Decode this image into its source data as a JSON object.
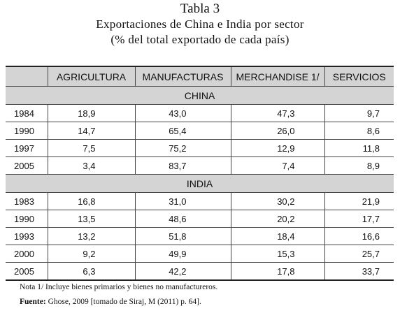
{
  "header": {
    "title": "Tabla 3",
    "subtitle": "Exportaciones de China e India por sector",
    "subtitle2": "(% del total exportado de cada país)"
  },
  "table": {
    "columns": [
      "AGRICULTURA",
      "MANUFACTURAS",
      "MERCHANDISE 1/",
      "SERVICIOS"
    ],
    "sections": [
      {
        "label": "CHINA",
        "rows": [
          [
            "1984",
            "18,9",
            "43,0",
            "47,3",
            "9,7"
          ],
          [
            "1990",
            "14,7",
            "65,4",
            "26,0",
            "8,6"
          ],
          [
            "1997",
            "7,5",
            "75,2",
            "12,9",
            "11,8"
          ],
          [
            "2005",
            "3,4",
            "83,7",
            "7,4",
            "8,9"
          ]
        ]
      },
      {
        "label": "INDIA",
        "rows": [
          [
            "1983",
            "16,8",
            "31,0",
            "30,2",
            "21,9"
          ],
          [
            "1990",
            "13,5",
            "48,6",
            "20,2",
            "17,7"
          ],
          [
            "1993",
            "13,2",
            "51,8",
            "18,4",
            "16,6"
          ],
          [
            "2000",
            "9,2",
            "49,9",
            "15,3",
            "25,7"
          ],
          [
            "2005",
            "6,3",
            "42,2",
            "17,8",
            "33,7"
          ]
        ]
      }
    ]
  },
  "notes": {
    "note": "Nota 1/ Incluye bienes primarios y bienes no manufactureros.",
    "source_label": "Fuente:",
    "source": "Ghose, 2009 [tomado de Siraj, M (2011) p. 64]."
  }
}
